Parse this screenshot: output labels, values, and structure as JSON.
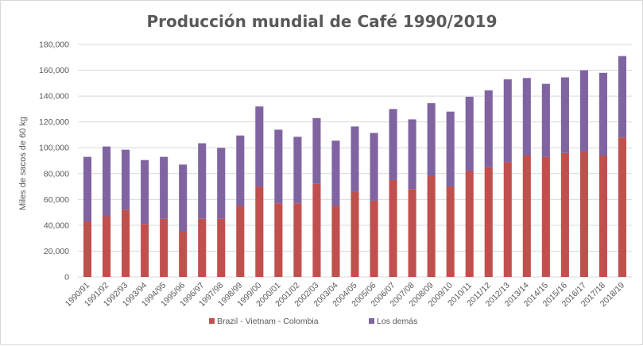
{
  "chart_data": {
    "type": "bar",
    "stacked": true,
    "title": "Producción mundial de Café 1990/2019",
    "xlabel": "",
    "ylabel": "Miles de sacos de 60 kg",
    "ylim": [
      0,
      180000
    ],
    "yticks": [
      "0",
      "20,000",
      "40,000",
      "60,000",
      "80,000",
      "100,000",
      "120,000",
      "140,000",
      "160,000",
      "180,000"
    ],
    "grid": true,
    "legend_position": "bottom",
    "categories": [
      "1990/91",
      "1991/92",
      "1992/93",
      "1993/94",
      "1994/95",
      "1995/96",
      "1996/97",
      "1997/98",
      "1998/99",
      "1999/00",
      "2000/01",
      "2001/02",
      "2002/03",
      "2003/04",
      "2004/05",
      "2005/06",
      "2006/07",
      "2007/08",
      "2008/09",
      "2009/10",
      "2010/11",
      "2011/12",
      "2012/13",
      "2013/14",
      "2014/15",
      "2015/16",
      "2016/17",
      "2017/18",
      "2018/19"
    ],
    "series": [
      {
        "name": "Brazil - Vietnam - Colombia",
        "color": "#c0504d",
        "values": [
          43000,
          47000,
          52000,
          41000,
          45000,
          35000,
          45000,
          45000,
          55000,
          70000,
          57000,
          57000,
          72000,
          55000,
          66000,
          59000,
          75000,
          68000,
          78000,
          70000,
          82000,
          85000,
          89000,
          94000,
          93000,
          96000,
          97000,
          94000,
          108000
        ]
      },
      {
        "name": "Los demás",
        "color": "#8064a2",
        "values": [
          50000,
          54000,
          46500,
          49500,
          48000,
          52000,
          58500,
          55000,
          54500,
          62000,
          57000,
          51500,
          51000,
          50500,
          50500,
          52500,
          55000,
          54000,
          56500,
          58000,
          57500,
          59500,
          64000,
          60000,
          56500,
          58500,
          63000,
          64000,
          63000
        ]
      }
    ]
  }
}
